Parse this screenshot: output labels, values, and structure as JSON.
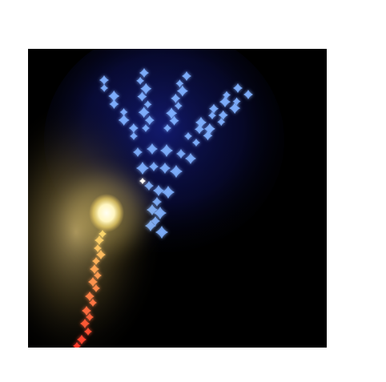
{
  "image": {
    "subject": "light-painting",
    "colors": {
      "page_background": "#ffffff",
      "canvas_background": "#000000",
      "hand_glow": "#2a3cff",
      "hand_sparkle": "#7fb0ff",
      "orb_core": "#fffbe0",
      "orb_glow": "#e8c25a",
      "trail_start": "#ffd86a",
      "trail_end": "#ff3b2a"
    }
  }
}
